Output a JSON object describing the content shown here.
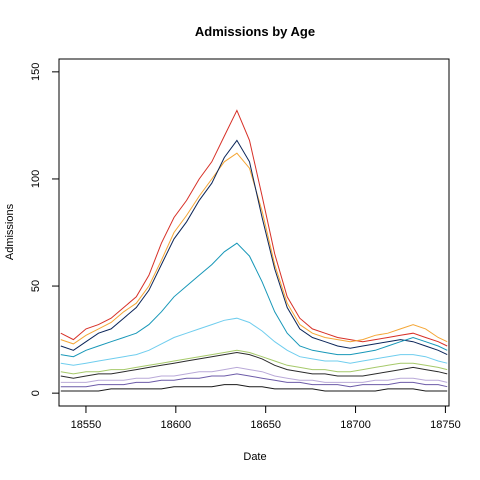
{
  "chart_data": {
    "type": "line",
    "title": "Admissions by Age",
    "xlabel": "Date",
    "ylabel": "Admissions",
    "xlim": [
      18535,
      18752
    ],
    "ylim": [
      0,
      150
    ],
    "x_ticks": [
      18550,
      18600,
      18650,
      18700,
      18750
    ],
    "y_ticks": [
      0,
      50,
      100,
      150
    ],
    "x_tick_labels": [
      "18550",
      "18600",
      "18650",
      "18700",
      "18750"
    ],
    "y_tick_labels": [
      "0",
      "50",
      "100",
      "150"
    ],
    "grid": false,
    "legend": "none",
    "x_step": 7,
    "x": [
      18536,
      18543,
      18550,
      18557,
      18564,
      18571,
      18578,
      18585,
      18592,
      18599,
      18606,
      18613,
      18620,
      18627,
      18634,
      18641,
      18648,
      18655,
      18662,
      18669,
      18676,
      18683,
      18690,
      18697,
      18704,
      18711,
      18718,
      18725,
      18732,
      18739,
      18746,
      18751
    ],
    "series": [
      {
        "color": "#d73027",
        "values": [
          28,
          25,
          30,
          32,
          35,
          40,
          45,
          55,
          70,
          82,
          90,
          100,
          108,
          120,
          132,
          118,
          92,
          65,
          45,
          35,
          30,
          28,
          26,
          25,
          24,
          25,
          26,
          27,
          28,
          26,
          24,
          22
        ]
      },
      {
        "color": "#f4a636",
        "values": [
          25,
          23,
          27,
          30,
          33,
          38,
          42,
          50,
          62,
          75,
          83,
          92,
          100,
          108,
          112,
          105,
          85,
          60,
          42,
          32,
          28,
          26,
          25,
          24,
          25,
          27,
          28,
          30,
          32,
          30,
          26,
          24
        ]
      },
      {
        "color": "#0b2559",
        "values": [
          22,
          20,
          24,
          28,
          30,
          35,
          40,
          48,
          60,
          72,
          80,
          90,
          98,
          110,
          118,
          108,
          82,
          58,
          40,
          30,
          26,
          24,
          22,
          21,
          22,
          23,
          24,
          25,
          24,
          22,
          20,
          18
        ]
      },
      {
        "color": "#1797b8",
        "values": [
          18,
          17,
          20,
          22,
          24,
          26,
          28,
          32,
          38,
          45,
          50,
          55,
          60,
          66,
          70,
          64,
          52,
          38,
          28,
          22,
          20,
          19,
          18,
          18,
          19,
          20,
          22,
          24,
          26,
          24,
          22,
          20
        ]
      },
      {
        "color": "#6fcdee",
        "values": [
          14,
          13,
          14,
          15,
          16,
          17,
          18,
          20,
          23,
          26,
          28,
          30,
          32,
          34,
          35,
          33,
          29,
          24,
          20,
          17,
          16,
          15,
          15,
          14,
          15,
          16,
          17,
          18,
          18,
          17,
          15,
          14
        ]
      },
      {
        "color": "#2b2b2b",
        "values": [
          8,
          7,
          8,
          9,
          9,
          10,
          11,
          12,
          13,
          14,
          15,
          16,
          17,
          18,
          19,
          18,
          16,
          13,
          11,
          10,
          9,
          9,
          8,
          8,
          8,
          9,
          10,
          11,
          12,
          11,
          10,
          9
        ]
      },
      {
        "color": "#a6c96a",
        "values": [
          10,
          9,
          10,
          10,
          11,
          11,
          12,
          13,
          14,
          15,
          16,
          17,
          18,
          19,
          20,
          19,
          17,
          15,
          13,
          12,
          11,
          11,
          10,
          10,
          11,
          12,
          13,
          14,
          14,
          13,
          12,
          11
        ]
      },
      {
        "color": "#6c5ba8",
        "values": [
          3,
          3,
          3,
          4,
          4,
          4,
          5,
          5,
          6,
          6,
          7,
          7,
          8,
          8,
          9,
          8,
          7,
          6,
          5,
          5,
          4,
          4,
          4,
          3,
          4,
          4,
          4,
          5,
          5,
          4,
          4,
          3
        ]
      },
      {
        "color": "#b9a9d8",
        "values": [
          5,
          5,
          5,
          6,
          6,
          6,
          7,
          7,
          8,
          8,
          9,
          10,
          10,
          11,
          12,
          11,
          10,
          8,
          7,
          6,
          6,
          5,
          5,
          5,
          5,
          6,
          6,
          7,
          7,
          6,
          6,
          5
        ]
      },
      {
        "color": "#1a1a1a",
        "values": [
          1,
          1,
          1,
          1,
          2,
          2,
          2,
          2,
          2,
          3,
          3,
          3,
          3,
          4,
          4,
          3,
          3,
          2,
          2,
          2,
          2,
          1,
          1,
          1,
          1,
          1,
          2,
          2,
          2,
          1,
          1,
          1
        ]
      }
    ]
  }
}
